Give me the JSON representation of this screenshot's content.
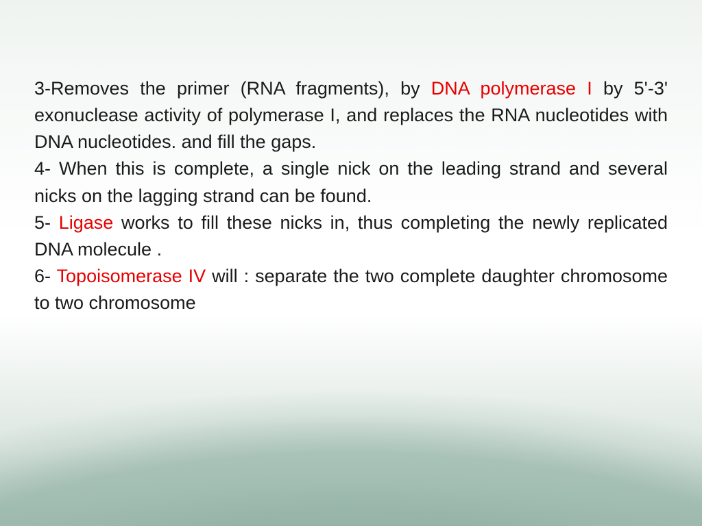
{
  "slide": {
    "background": {
      "top_tint": "#eef3f0",
      "mid": "#ffffff",
      "wave_inner": "#dce6e0",
      "wave_outer": "#b9ccc2",
      "arc_highlight": "rgba(120,160,145,0.55)"
    },
    "typography": {
      "font_family": "Arial",
      "font_size_pt": 20,
      "line_height": 1.45,
      "text_color": "#1a1a1a",
      "highlight_color": "#e60000",
      "align": "justify"
    },
    "paragraphs": [
      {
        "id": "p3",
        "runs": [
          {
            "t": "3-Removes the primer (RNA fragments), by  ",
            "hl": false
          },
          {
            "t": "DNA polymerase I",
            "hl": true
          },
          {
            "t": " by 5'-3' exonuclease activity of polymerase I, and replaces the RNA nucleotides with DNA nucleotides. and   fill the gaps.",
            "hl": false
          }
        ]
      },
      {
        "id": "p4",
        "runs": [
          {
            "t": "4-  When this is complete, a single nick on the leading strand and several nicks on the lagging strand can be found.",
            "hl": false
          }
        ]
      },
      {
        "id": "p5",
        "runs": [
          {
            "t": "5- ",
            "hl": false
          },
          {
            "t": "Ligase",
            "hl": true
          },
          {
            "t": "  works to fill these nicks in, thus completing the newly replicated DNA molecule  .",
            "hl": false
          }
        ]
      },
      {
        "id": "p6",
        "runs": [
          {
            "t": "6- ",
            "hl": false
          },
          {
            "t": "Topoisomerase IV",
            "hl": true
          },
          {
            "t": " will : separate the two complete daughter  chromosome to two chromosome",
            "hl": false
          }
        ]
      }
    ]
  }
}
